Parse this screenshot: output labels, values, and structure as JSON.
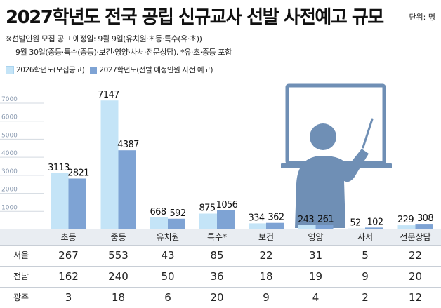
{
  "header": {
    "title": "2027학년도 전국 공립 신규교사 선발 사전예고 규모",
    "unit": "단위: 명",
    "note1": "※선발인원 모집 공고 예정일: 9월 9일(유치원·초등·특수(유·초))",
    "note2": "9월 30일(중등·특수(중등)·보건·영양·사서·전문상담). *유·초·중등 포함"
  },
  "legend": [
    {
      "label": "2026학년도(모집공고)",
      "color": "#c4e4f7"
    },
    {
      "label": "2027학년도(선발 예정인원 사전 예고)",
      "color": "#7ea3d4"
    }
  ],
  "chart_data": {
    "type": "bar",
    "categories": [
      "초등",
      "중등",
      "유치원",
      "특수*",
      "보건",
      "영양",
      "사서",
      "전문상담"
    ],
    "series": [
      {
        "name": "2026학년도(모집공고)",
        "values": [
          3113,
          7147,
          668,
          875,
          334,
          243,
          52,
          229
        ]
      },
      {
        "name": "2027학년도(선발 예정인원 사전 예고)",
        "values": [
          2821,
          4387,
          592,
          1056,
          362,
          261,
          102,
          308
        ]
      }
    ],
    "yticks": [
      1000,
      2000,
      3000,
      4000,
      5000,
      6000,
      7000
    ],
    "ylim": [
      0,
      7000
    ],
    "grid": true
  },
  "table": {
    "rows": [
      {
        "label": "서울",
        "values": [
          "267",
          "553",
          "43",
          "85",
          "22",
          "31",
          "5",
          "22"
        ]
      },
      {
        "label": "전남",
        "values": [
          "162",
          "240",
          "50",
          "36",
          "18",
          "19",
          "9",
          "20"
        ]
      },
      {
        "label": "광주",
        "values": [
          "3",
          "18",
          "6",
          "20",
          "9",
          "4",
          "2",
          "12"
        ]
      }
    ]
  },
  "illustration": {
    "icon": "teacher-at-board-icon",
    "color": "#6f8fb5"
  },
  "colors": {
    "axis": "#8a9ab0",
    "header_bg": "#e9edf2",
    "gridline": "#c8ced6"
  }
}
